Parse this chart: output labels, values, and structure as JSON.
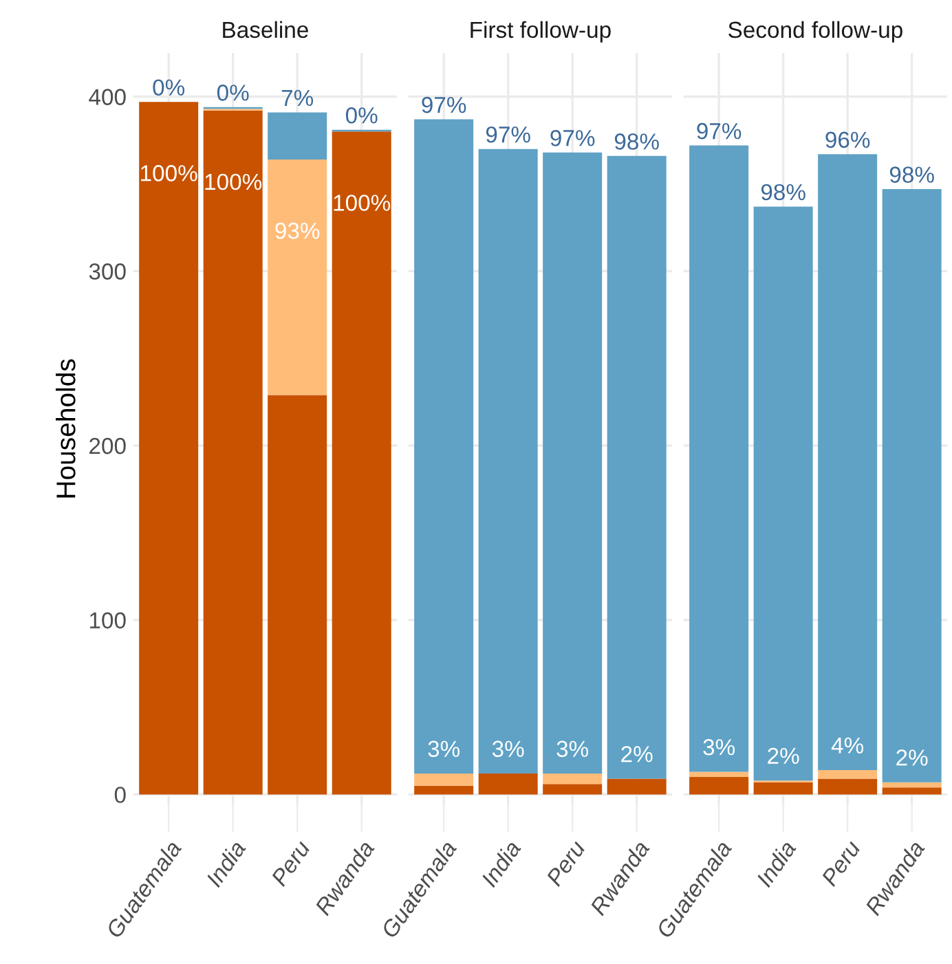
{
  "chart_data": [
    {
      "type": "bar",
      "title": "Baseline",
      "ylabel": "Households",
      "stacked": true,
      "categories": [
        "Guatemala",
        "India",
        "Peru",
        "Rwanda"
      ],
      "ylim": [
        -6,
        425
      ],
      "yticks": [
        0,
        100,
        200,
        300,
        400
      ],
      "grid": true,
      "tick_labels": "xy",
      "series": [
        {
          "color": "#c85200",
          "values": [
            397,
            392,
            229,
            380
          ]
        },
        {
          "color": "#ffbc79",
          "values": [
            0,
            1,
            135,
            0
          ]
        },
        {
          "color": "#5fa2c5",
          "values": [
            0,
            1,
            27,
            1
          ]
        }
      ],
      "annotations": [
        {
          "text": "0%",
          "x": "Guatemala",
          "y": 397
        },
        {
          "text": "0%",
          "x": "India",
          "y": 394
        },
        {
          "text": "7%",
          "x": "Peru",
          "y": 391
        },
        {
          "text": "0%",
          "x": "Rwanda",
          "y": 381
        },
        {
          "text": "100%",
          "x": "Guatemala",
          "y": 397
        },
        {
          "text": "100%",
          "x": "India",
          "y": 392
        },
        {
          "text": "93%",
          "x": "Peru",
          "y": 364
        },
        {
          "text": "100%",
          "x": "Rwanda",
          "y": 380
        }
      ]
    },
    {
      "type": "bar",
      "title": "First follow-up",
      "stacked": true,
      "categories": [
        "Guatemala",
        "India",
        "Peru",
        "Rwanda"
      ],
      "ylim": [
        -6,
        425
      ],
      "yticks": [
        0,
        100,
        200,
        300,
        400
      ],
      "grid": true,
      "tick_labels": "x",
      "series": [
        {
          "color": "#c85200",
          "values": [
            5,
            12,
            6,
            9
          ]
        },
        {
          "color": "#ffbc79",
          "values": [
            7,
            0,
            6,
            0
          ]
        },
        {
          "color": "#5fa2c5",
          "values": [
            375,
            358,
            356,
            357
          ]
        }
      ],
      "annotations": [
        {
          "text": "97%",
          "x": "Guatemala",
          "y": 387
        },
        {
          "text": "97%",
          "x": "India",
          "y": 370
        },
        {
          "text": "97%",
          "x": "Peru",
          "y": 368
        },
        {
          "text": "98%",
          "x": "Rwanda",
          "y": 366
        },
        {
          "text": "3%",
          "x": "Guatemala",
          "y": 12
        },
        {
          "text": "3%",
          "x": "India",
          "y": 12
        },
        {
          "text": "3%",
          "x": "Peru",
          "y": 12
        },
        {
          "text": "2%",
          "x": "Rwanda",
          "y": 9
        }
      ]
    },
    {
      "type": "bar",
      "title": "Second follow-up",
      "stacked": true,
      "categories": [
        "Guatemala",
        "India",
        "Peru",
        "Rwanda"
      ],
      "ylim": [
        -6,
        425
      ],
      "yticks": [
        0,
        100,
        200,
        300,
        400
      ],
      "grid": true,
      "tick_labels": "x",
      "series": [
        {
          "color": "#c85200",
          "values": [
            10,
            7,
            9,
            4
          ]
        },
        {
          "color": "#ffbc79",
          "values": [
            3,
            1,
            5,
            3
          ]
        },
        {
          "color": "#5fa2c5",
          "values": [
            359,
            329,
            353,
            340
          ]
        }
      ],
      "annotations": [
        {
          "text": "97%",
          "x": "Guatemala",
          "y": 372
        },
        {
          "text": "98%",
          "x": "India",
          "y": 337
        },
        {
          "text": "96%",
          "x": "Peru",
          "y": 367
        },
        {
          "text": "98%",
          "x": "Rwanda",
          "y": 347
        },
        {
          "text": "3%",
          "x": "Guatemala",
          "y": 13
        },
        {
          "text": "2%",
          "x": "India",
          "y": 8
        },
        {
          "text": "4%",
          "x": "Peru",
          "y": 14
        },
        {
          "text": "2%",
          "x": "Rwanda",
          "y": 7
        }
      ]
    }
  ]
}
